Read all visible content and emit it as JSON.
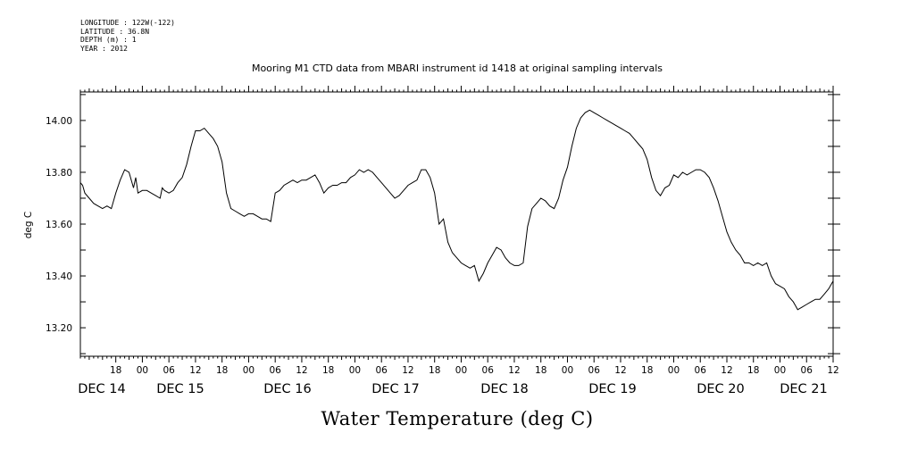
{
  "meta": {
    "longitude": "LONGITUDE : 122W(-122)",
    "latitude": "LATITUDE : 36.8N",
    "depth": "DEPTH (m) : 1",
    "year": "YEAR : 2012"
  },
  "chart_data": {
    "type": "line",
    "title": "Mooring M1 CTD data from MBARI instrument id 1418 at original sampling intervals",
    "ylabel": "deg C",
    "caption": "Water Temperature (deg C)",
    "ylim": [
      13.09,
      14.11
    ],
    "xlim_hours": [
      10.0,
      180.0
    ],
    "y_ticks": [
      "13.20",
      "13.40",
      "13.60",
      "13.80",
      "14.00"
    ],
    "hour_ticks": [
      "18",
      "00",
      "06",
      "12",
      "18",
      "00",
      "06",
      "12",
      "18",
      "00",
      "06",
      "12",
      "18",
      "00",
      "06",
      "12",
      "18",
      "00",
      "06",
      "12",
      "18",
      "00",
      "06",
      "12",
      "18",
      "00",
      "06",
      "12",
      "18",
      "00",
      "06",
      "12"
    ],
    "day_labels": [
      "DEC 14",
      "DEC 15",
      "DEC 16",
      "DEC 17",
      "DEC 18",
      "DEC 19",
      "DEC 20",
      "DEC 21"
    ],
    "series": [
      {
        "values": [
          [
            10.0,
            13.76
          ],
          [
            10.5,
            13.75
          ],
          [
            11.0,
            13.72
          ],
          [
            12,
            13.7
          ],
          [
            13,
            13.68
          ],
          [
            14,
            13.67
          ],
          [
            15,
            13.66
          ],
          [
            16,
            13.67
          ],
          [
            17,
            13.66
          ],
          [
            18,
            13.72
          ],
          [
            19,
            13.77
          ],
          [
            20,
            13.81
          ],
          [
            21,
            13.8
          ],
          [
            22,
            13.74
          ],
          [
            22.5,
            13.78
          ],
          [
            23,
            13.72
          ],
          [
            24,
            13.73
          ],
          [
            25,
            13.73
          ],
          [
            26,
            13.72
          ],
          [
            27,
            13.71
          ],
          [
            28,
            13.7
          ],
          [
            28.5,
            13.74
          ],
          [
            29,
            13.73
          ],
          [
            30,
            13.72
          ],
          [
            31,
            13.73
          ],
          [
            32,
            13.76
          ],
          [
            33,
            13.78
          ],
          [
            34,
            13.83
          ],
          [
            35,
            13.9
          ],
          [
            36,
            13.96
          ],
          [
            37,
            13.96
          ],
          [
            38,
            13.97
          ],
          [
            39,
            13.95
          ],
          [
            40,
            13.93
          ],
          [
            41,
            13.9
          ],
          [
            42,
            13.84
          ],
          [
            43,
            13.72
          ],
          [
            44,
            13.66
          ],
          [
            45,
            13.65
          ],
          [
            46,
            13.64
          ],
          [
            47,
            13.63
          ],
          [
            48,
            13.64
          ],
          [
            49,
            13.64
          ],
          [
            50,
            13.63
          ],
          [
            51,
            13.62
          ],
          [
            52,
            13.62
          ],
          [
            53,
            13.61
          ],
          [
            54,
            13.72
          ],
          [
            55,
            13.73
          ],
          [
            56,
            13.75
          ],
          [
            57,
            13.76
          ],
          [
            58,
            13.77
          ],
          [
            59,
            13.76
          ],
          [
            60,
            13.77
          ],
          [
            61,
            13.77
          ],
          [
            62,
            13.78
          ],
          [
            63,
            13.79
          ],
          [
            64,
            13.76
          ],
          [
            65,
            13.72
          ],
          [
            66,
            13.74
          ],
          [
            67,
            13.75
          ],
          [
            68,
            13.75
          ],
          [
            69,
            13.76
          ],
          [
            70,
            13.76
          ],
          [
            71,
            13.78
          ],
          [
            72,
            13.79
          ],
          [
            73,
            13.81
          ],
          [
            74,
            13.8
          ],
          [
            75,
            13.81
          ],
          [
            76,
            13.8
          ],
          [
            77,
            13.78
          ],
          [
            78,
            13.76
          ],
          [
            79,
            13.74
          ],
          [
            80,
            13.72
          ],
          [
            81,
            13.7
          ],
          [
            82,
            13.71
          ],
          [
            83,
            13.73
          ],
          [
            84,
            13.75
          ],
          [
            85,
            13.76
          ],
          [
            86,
            13.77
          ],
          [
            87,
            13.81
          ],
          [
            88,
            13.81
          ],
          [
            89,
            13.78
          ],
          [
            90,
            13.72
          ],
          [
            91,
            13.6
          ],
          [
            92,
            13.62
          ],
          [
            93,
            13.53
          ],
          [
            94,
            13.49
          ],
          [
            95,
            13.47
          ],
          [
            96,
            13.45
          ],
          [
            97,
            13.44
          ],
          [
            98,
            13.43
          ],
          [
            99,
            13.44
          ],
          [
            100,
            13.38
          ],
          [
            101,
            13.41
          ],
          [
            102,
            13.45
          ],
          [
            103,
            13.48
          ],
          [
            104,
            13.51
          ],
          [
            105,
            13.5
          ],
          [
            106,
            13.47
          ],
          [
            107,
            13.45
          ],
          [
            108,
            13.44
          ],
          [
            109,
            13.44
          ],
          [
            110,
            13.45
          ],
          [
            111,
            13.59
          ],
          [
            112,
            13.66
          ],
          [
            113,
            13.68
          ],
          [
            114,
            13.7
          ],
          [
            115,
            13.69
          ],
          [
            116,
            13.67
          ],
          [
            117,
            13.66
          ],
          [
            118,
            13.7
          ],
          [
            119,
            13.77
          ],
          [
            120,
            13.82
          ],
          [
            121,
            13.9
          ],
          [
            122,
            13.97
          ],
          [
            123,
            14.01
          ],
          [
            124,
            14.03
          ],
          [
            125,
            14.04
          ],
          [
            126,
            14.03
          ],
          [
            127,
            14.02
          ],
          [
            128,
            14.01
          ],
          [
            129,
            14.0
          ],
          [
            130,
            13.99
          ],
          [
            131,
            13.98
          ],
          [
            132,
            13.97
          ],
          [
            133,
            13.96
          ],
          [
            134,
            13.95
          ],
          [
            135,
            13.93
          ],
          [
            136,
            13.91
          ],
          [
            137,
            13.89
          ],
          [
            138,
            13.85
          ],
          [
            139,
            13.78
          ],
          [
            140,
            13.73
          ],
          [
            141,
            13.71
          ],
          [
            142,
            13.74
          ],
          [
            143,
            13.75
          ],
          [
            144,
            13.79
          ],
          [
            145,
            13.78
          ],
          [
            146,
            13.8
          ],
          [
            147,
            13.79
          ],
          [
            148,
            13.8
          ],
          [
            149,
            13.81
          ],
          [
            150,
            13.81
          ],
          [
            151,
            13.8
          ],
          [
            152,
            13.78
          ],
          [
            153,
            13.74
          ],
          [
            154,
            13.69
          ],
          [
            155,
            13.63
          ],
          [
            156,
            13.57
          ],
          [
            157,
            13.53
          ],
          [
            158,
            13.5
          ],
          [
            159,
            13.48
          ],
          [
            160,
            13.45
          ],
          [
            161,
            13.45
          ],
          [
            162,
            13.44
          ],
          [
            163,
            13.45
          ],
          [
            164,
            13.44
          ],
          [
            165,
            13.45
          ],
          [
            166,
            13.4
          ],
          [
            167,
            13.37
          ],
          [
            168,
            13.36
          ],
          [
            169,
            13.35
          ],
          [
            170,
            13.32
          ],
          [
            171,
            13.3
          ],
          [
            172,
            13.27
          ],
          [
            173,
            13.28
          ],
          [
            174,
            13.29
          ],
          [
            175,
            13.3
          ],
          [
            176,
            13.31
          ],
          [
            177,
            13.31
          ],
          [
            178,
            13.33
          ],
          [
            179,
            13.35
          ],
          [
            180,
            13.38
          ]
        ]
      }
    ]
  }
}
